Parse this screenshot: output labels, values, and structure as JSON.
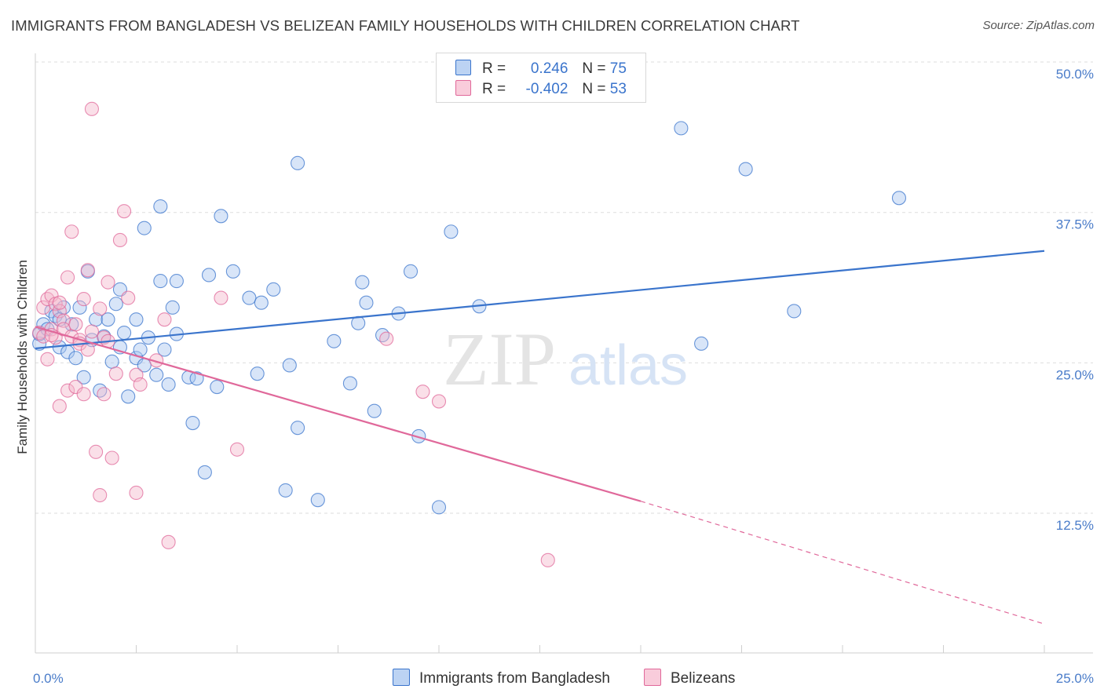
{
  "title": "IMMIGRANTS FROM BANGLADESH VS BELIZEAN FAMILY HOUSEHOLDS WITH CHILDREN CORRELATION CHART",
  "source": "Source: ZipAtlas.com",
  "watermark": {
    "zip": "ZIP",
    "atlas": "atlas"
  },
  "legend": {
    "rows": [
      {
        "r_label": "R =",
        "r_value": "0.246",
        "n_label": "N =",
        "n_value": "75"
      },
      {
        "r_label": "R =",
        "r_value": "-0.402",
        "n_label": "N =",
        "n_value": "53"
      }
    ]
  },
  "bottom_legend": [
    "Immigrants from Bangladesh",
    "Belizeans"
  ],
  "colors": {
    "blue": "#3a74cc",
    "blue_fill": "#a9c6f0",
    "pink": "#e0689a",
    "pink_fill": "#f5b7cc",
    "grid": "#dddddd",
    "tick_text": "#4a7cc9"
  },
  "chart_data": {
    "type": "scatter",
    "xlabel": "",
    "ylabel": "Family Households with Children",
    "xlim": [
      0,
      25
    ],
    "ylim": [
      0,
      52
    ],
    "x_tick_labels": [
      {
        "value": 0,
        "label": "0.0%"
      },
      {
        "value": 25,
        "label": "25.0%"
      }
    ],
    "y_tick_labels": [
      {
        "value": 12.5,
        "label": "12.5%"
      },
      {
        "value": 25,
        "label": "25.0%"
      },
      {
        "value": 37.5,
        "label": "37.5%"
      },
      {
        "value": 50,
        "label": "50.0%"
      }
    ],
    "grid": true,
    "series": [
      {
        "name": "Immigrants from Bangladesh",
        "trend": {
          "x": [
            0,
            25
          ],
          "y": [
            26.2,
            34.3
          ]
        },
        "points": [
          [
            0.1,
            26.6
          ],
          [
            0.1,
            27.4
          ],
          [
            0.2,
            28.2
          ],
          [
            0.3,
            27.8
          ],
          [
            0.4,
            29.3
          ],
          [
            0.5,
            28.9
          ],
          [
            0.6,
            26.3
          ],
          [
            0.7,
            29.6
          ],
          [
            0.8,
            25.9
          ],
          [
            0.9,
            28.2
          ],
          [
            1.0,
            25.4
          ],
          [
            1.1,
            29.6
          ],
          [
            1.2,
            23.8
          ],
          [
            1.3,
            32.6
          ],
          [
            1.4,
            26.9
          ],
          [
            1.5,
            28.6
          ],
          [
            1.6,
            22.7
          ],
          [
            1.7,
            27.2
          ],
          [
            1.8,
            28.6
          ],
          [
            1.9,
            25.1
          ],
          [
            2.0,
            29.9
          ],
          [
            2.1,
            26.3
          ],
          [
            2.1,
            31.1
          ],
          [
            2.2,
            27.5
          ],
          [
            2.3,
            22.2
          ],
          [
            2.5,
            28.6
          ],
          [
            2.5,
            25.4
          ],
          [
            2.6,
            26.1
          ],
          [
            2.7,
            24.8
          ],
          [
            2.7,
            36.2
          ],
          [
            2.8,
            27.1
          ],
          [
            3.0,
            24.0
          ],
          [
            3.1,
            38.0
          ],
          [
            3.1,
            31.8
          ],
          [
            3.2,
            26.1
          ],
          [
            3.3,
            23.2
          ],
          [
            3.4,
            29.6
          ],
          [
            3.5,
            27.4
          ],
          [
            3.5,
            31.8
          ],
          [
            3.8,
            23.8
          ],
          [
            3.9,
            20.0
          ],
          [
            4.0,
            23.7
          ],
          [
            4.2,
            15.9
          ],
          [
            4.3,
            32.3
          ],
          [
            4.5,
            23.0
          ],
          [
            4.6,
            37.2
          ],
          [
            4.9,
            32.6
          ],
          [
            5.3,
            30.4
          ],
          [
            5.5,
            24.1
          ],
          [
            5.6,
            30.0
          ],
          [
            5.9,
            31.1
          ],
          [
            6.2,
            14.4
          ],
          [
            6.3,
            24.8
          ],
          [
            6.5,
            19.6
          ],
          [
            6.5,
            41.6
          ],
          [
            7.0,
            13.6
          ],
          [
            7.4,
            26.8
          ],
          [
            7.8,
            23.3
          ],
          [
            8.0,
            28.3
          ],
          [
            8.1,
            31.7
          ],
          [
            8.2,
            30.0
          ],
          [
            8.4,
            21.0
          ],
          [
            8.6,
            27.3
          ],
          [
            9.0,
            29.1
          ],
          [
            9.3,
            32.6
          ],
          [
            9.5,
            18.9
          ],
          [
            10.0,
            13.0
          ],
          [
            10.3,
            35.9
          ],
          [
            11.0,
            29.7
          ],
          [
            16.0,
            44.5
          ],
          [
            16.5,
            26.6
          ],
          [
            17.6,
            41.1
          ],
          [
            18.8,
            29.3
          ],
          [
            21.4,
            38.7
          ],
          [
            0.6,
            28.6
          ]
        ]
      },
      {
        "name": "Belizeans",
        "trend": {
          "x": [
            0,
            15
          ],
          "y": [
            28.0,
            13.5
          ]
        },
        "trend_ext": {
          "x": [
            15,
            25
          ],
          "y": [
            13.5,
            3.3
          ]
        },
        "points": [
          [
            0.1,
            27.5
          ],
          [
            0.2,
            29.6
          ],
          [
            0.2,
            27.2
          ],
          [
            0.3,
            25.3
          ],
          [
            0.3,
            30.3
          ],
          [
            0.4,
            27.8
          ],
          [
            0.4,
            30.6
          ],
          [
            0.5,
            29.9
          ],
          [
            0.5,
            27.1
          ],
          [
            0.6,
            29.3
          ],
          [
            0.6,
            30.0
          ],
          [
            0.6,
            21.4
          ],
          [
            0.7,
            28.5
          ],
          [
            0.7,
            27.8
          ],
          [
            0.8,
            32.1
          ],
          [
            0.8,
            22.7
          ],
          [
            0.9,
            27.2
          ],
          [
            0.9,
            35.9
          ],
          [
            1.0,
            23.0
          ],
          [
            1.0,
            28.2
          ],
          [
            1.1,
            26.9
          ],
          [
            1.1,
            26.6
          ],
          [
            1.2,
            30.3
          ],
          [
            1.2,
            22.4
          ],
          [
            1.3,
            26.1
          ],
          [
            1.3,
            32.7
          ],
          [
            1.4,
            27.6
          ],
          [
            1.4,
            46.1
          ],
          [
            1.5,
            17.6
          ],
          [
            1.6,
            14.0
          ],
          [
            1.6,
            29.5
          ],
          [
            1.7,
            22.4
          ],
          [
            1.7,
            27.1
          ],
          [
            1.8,
            31.7
          ],
          [
            1.8,
            26.8
          ],
          [
            1.9,
            17.1
          ],
          [
            2.0,
            24.1
          ],
          [
            2.1,
            35.2
          ],
          [
            2.2,
            37.6
          ],
          [
            2.3,
            30.4
          ],
          [
            2.5,
            24.0
          ],
          [
            2.5,
            14.2
          ],
          [
            2.6,
            23.2
          ],
          [
            3.0,
            25.2
          ],
          [
            3.2,
            28.6
          ],
          [
            3.3,
            10.1
          ],
          [
            4.6,
            30.4
          ],
          [
            5.0,
            17.8
          ],
          [
            8.7,
            27.0
          ],
          [
            9.6,
            22.6
          ],
          [
            10.0,
            21.8
          ],
          [
            12.7,
            8.6
          ],
          [
            0.4,
            27.3
          ]
        ]
      }
    ]
  }
}
